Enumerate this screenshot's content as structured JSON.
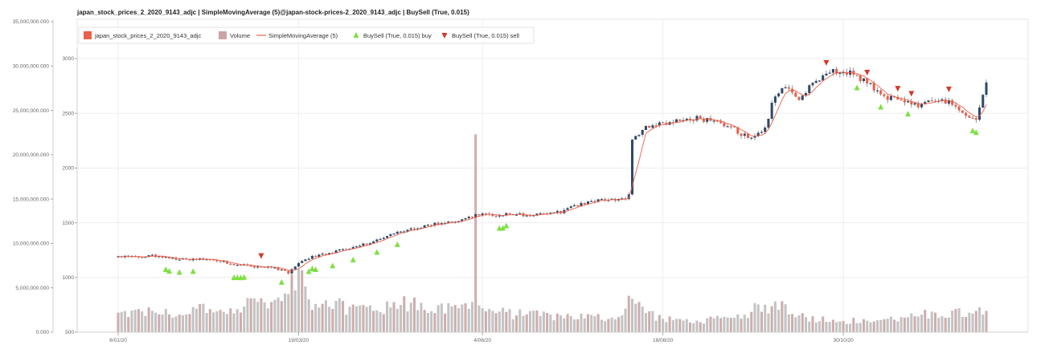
{
  "chart_data": {
    "type": "candlestick",
    "title": "japan_stock_prices_2_2020_9143_adjc | SimpleMovingAverage (5)@japan-stock-prices-2_2020_9143_adjc | BuySell (True, 0.015)",
    "legend": {
      "placement": "top-left",
      "items": [
        {
          "label": "japan_stock_prices_2_2020_9143_adjc",
          "kind": "candle",
          "color": "#e8614a"
        },
        {
          "label": "Volume",
          "kind": "volume",
          "color": "#c9a4a4"
        },
        {
          "label": "SimpleMovingAverage (5)",
          "kind": "line",
          "color": "#e8614a"
        },
        {
          "label": "BuySell (True, 0.015) buy",
          "kind": "buy",
          "color": "#7ee043"
        },
        {
          "label": "BuySell (True, 0.015) sell",
          "kind": "sell",
          "color": "#d23a2a"
        }
      ]
    },
    "x_tick_labels": [
      "6/01/20",
      "19/03/20",
      "4/06/20",
      "18/08/20",
      "30/10/20"
    ],
    "x_tick_index": [
      0,
      53,
      107,
      160,
      213
    ],
    "price_axis": {
      "ticks": [
        "500",
        "1000",
        "1500",
        "2000",
        "2500",
        "3000"
      ],
      "values": [
        500,
        1000,
        1500,
        2000,
        2500,
        3000
      ],
      "range": [
        500,
        3000
      ]
    },
    "volume_axis": {
      "ticks": [
        "0.000",
        "5,000,000.000",
        "10,000,000.000",
        "15,000,000.000",
        "20,000,000.000",
        "25,000,000.000",
        "30,000,000.000",
        "35,000,000.000"
      ],
      "values": [
        0,
        5000000,
        10000000,
        15000000,
        20000000,
        25000000,
        30000000,
        35000000
      ],
      "range": [
        0,
        35000000
      ]
    },
    "grid": true,
    "price_keypoints": [
      [
        0,
        1190
      ],
      [
        5,
        1185
      ],
      [
        10,
        1200
      ],
      [
        15,
        1175
      ],
      [
        20,
        1160
      ],
      [
        25,
        1170
      ],
      [
        30,
        1145
      ],
      [
        35,
        1120
      ],
      [
        40,
        1100
      ],
      [
        45,
        1090
      ],
      [
        48,
        1070
      ],
      [
        50,
        1040
      ],
      [
        53,
        1130
      ],
      [
        56,
        1180
      ],
      [
        60,
        1210
      ],
      [
        65,
        1250
      ],
      [
        70,
        1280
      ],
      [
        75,
        1330
      ],
      [
        80,
        1390
      ],
      [
        85,
        1440
      ],
      [
        90,
        1470
      ],
      [
        95,
        1500
      ],
      [
        100,
        1520
      ],
      [
        105,
        1570
      ],
      [
        107,
        1595
      ],
      [
        110,
        1560
      ],
      [
        115,
        1580
      ],
      [
        120,
        1570
      ],
      [
        125,
        1580
      ],
      [
        130,
        1600
      ],
      [
        135,
        1660
      ],
      [
        140,
        1700
      ],
      [
        145,
        1720
      ],
      [
        148,
        1710
      ],
      [
        150,
        1750
      ],
      [
        151,
        2260
      ],
      [
        155,
        2380
      ],
      [
        160,
        2400
      ],
      [
        165,
        2430
      ],
      [
        170,
        2460
      ],
      [
        175,
        2420
      ],
      [
        180,
        2380
      ],
      [
        183,
        2310
      ],
      [
        186,
        2260
      ],
      [
        190,
        2360
      ],
      [
        192,
        2580
      ],
      [
        195,
        2750
      ],
      [
        198,
        2700
      ],
      [
        200,
        2640
      ],
      [
        205,
        2800
      ],
      [
        210,
        2890
      ],
      [
        215,
        2870
      ],
      [
        220,
        2780
      ],
      [
        225,
        2650
      ],
      [
        230,
        2620
      ],
      [
        235,
        2560
      ],
      [
        240,
        2620
      ],
      [
        245,
        2600
      ],
      [
        249,
        2480
      ],
      [
        252,
        2430
      ],
      [
        255,
        2770
      ]
    ],
    "volume_keypoints": [
      [
        0,
        2200000
      ],
      [
        10,
        2400000
      ],
      [
        20,
        2000000
      ],
      [
        25,
        3200000
      ],
      [
        30,
        2500000
      ],
      [
        35,
        2600000
      ],
      [
        40,
        3800000
      ],
      [
        45,
        3400000
      ],
      [
        50,
        4300000
      ],
      [
        53,
        7100000
      ],
      [
        56,
        3700000
      ],
      [
        60,
        3200000
      ],
      [
        70,
        2900000
      ],
      [
        80,
        2800000
      ],
      [
        87,
        3900000
      ],
      [
        90,
        2500000
      ],
      [
        100,
        2700000
      ],
      [
        104,
        3400000
      ],
      [
        105,
        22300000
      ],
      [
        106,
        3000000
      ],
      [
        110,
        2400000
      ],
      [
        120,
        2000000
      ],
      [
        130,
        1900000
      ],
      [
        140,
        1800000
      ],
      [
        147,
        1700000
      ],
      [
        150,
        4100000
      ],
      [
        152,
        3200000
      ],
      [
        160,
        1500000
      ],
      [
        170,
        1300000
      ],
      [
        180,
        1600000
      ],
      [
        190,
        3100000
      ],
      [
        195,
        3500000
      ],
      [
        200,
        1900000
      ],
      [
        210,
        1400000
      ],
      [
        220,
        1300000
      ],
      [
        230,
        1700000
      ],
      [
        240,
        2200000
      ],
      [
        250,
        2200000
      ],
      [
        255,
        2400000
      ]
    ],
    "buy_signal_index": [
      14,
      15,
      18,
      22,
      34,
      35,
      36,
      37,
      48,
      56,
      57,
      58,
      63,
      69,
      76,
      82,
      112,
      113,
      114,
      217,
      224,
      232,
      251,
      252
    ],
    "sell_signal_index": [
      42,
      208,
      220,
      229,
      233,
      244
    ]
  }
}
